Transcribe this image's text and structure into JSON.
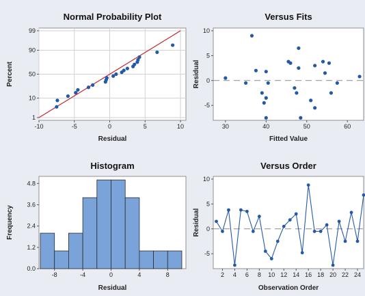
{
  "chart_data": [
    {
      "type": "scatter",
      "title": "Normal Probability Plot",
      "xlabel": "Residual",
      "ylabel": "Percent",
      "xlim": [
        -10,
        10
      ],
      "xticks": [
        -10,
        -5,
        0,
        5,
        10
      ],
      "yticks": [
        1,
        10,
        50,
        90,
        99
      ],
      "fit_line": {
        "from": [
          -10,
          1
        ],
        "to": [
          10,
          99
        ]
      },
      "points": [
        {
          "x": -7.5,
          "y": 4
        },
        {
          "x": -7.4,
          "y": 8
        },
        {
          "x": -5.9,
          "y": 12
        },
        {
          "x": -4.8,
          "y": 16
        },
        {
          "x": -4.5,
          "y": 20
        },
        {
          "x": -3.0,
          "y": 24
        },
        {
          "x": -2.4,
          "y": 28
        },
        {
          "x": -0.6,
          "y": 34
        },
        {
          "x": -0.5,
          "y": 38
        },
        {
          "x": -0.4,
          "y": 42
        },
        {
          "x": 0.5,
          "y": 46
        },
        {
          "x": 0.9,
          "y": 50
        },
        {
          "x": 1.7,
          "y": 54
        },
        {
          "x": 2.0,
          "y": 58
        },
        {
          "x": 2.5,
          "y": 62
        },
        {
          "x": 3.3,
          "y": 66
        },
        {
          "x": 3.5,
          "y": 70
        },
        {
          "x": 3.9,
          "y": 74
        },
        {
          "x": 4.0,
          "y": 78
        },
        {
          "x": 4.2,
          "y": 82
        },
        {
          "x": 6.7,
          "y": 88
        },
        {
          "x": 8.9,
          "y": 94
        }
      ],
      "grid": true,
      "point_color": "#2459a8",
      "line_color": "#c0272d"
    },
    {
      "type": "scatter",
      "title": "Versus Fits",
      "xlabel": "Fitted Value",
      "ylabel": "Residual",
      "xlim": [
        27,
        64
      ],
      "ylim": [
        -8,
        10
      ],
      "xticks": [
        30,
        40,
        50,
        60
      ],
      "yticks": [
        -5,
        0,
        5,
        10
      ],
      "reference_line": 0,
      "points": [
        {
          "x": 30,
          "y": 0.5
        },
        {
          "x": 35,
          "y": -0.5
        },
        {
          "x": 36.5,
          "y": 9.0
        },
        {
          "x": 37.5,
          "y": 2.0
        },
        {
          "x": 39,
          "y": -2.5
        },
        {
          "x": 39.5,
          "y": -4.5
        },
        {
          "x": 40,
          "y": -7.5
        },
        {
          "x": 40,
          "y": -3.5
        },
        {
          "x": 40,
          "y": 1.8
        },
        {
          "x": 40.5,
          "y": -0.5
        },
        {
          "x": 45.5,
          "y": 3.8
        },
        {
          "x": 46,
          "y": 3.5
        },
        {
          "x": 47,
          "y": -1.5
        },
        {
          "x": 47.5,
          "y": -2.5
        },
        {
          "x": 48,
          "y": 6.5
        },
        {
          "x": 48,
          "y": 2.5
        },
        {
          "x": 48.5,
          "y": -7.5
        },
        {
          "x": 51,
          "y": -4.0
        },
        {
          "x": 52,
          "y": 3.0
        },
        {
          "x": 52,
          "y": -5.5
        },
        {
          "x": 54,
          "y": 3.8
        },
        {
          "x": 54.5,
          "y": 1.5
        },
        {
          "x": 55.5,
          "y": 3.5
        },
        {
          "x": 56,
          "y": -2.5
        },
        {
          "x": 57.5,
          "y": -0.5
        },
        {
          "x": 63,
          "y": 0.8
        }
      ],
      "point_color": "#2459a8",
      "reference_color": "#8a8a8a"
    },
    {
      "type": "bar",
      "title": "Histogram",
      "xlabel": "Residual",
      "ylabel": "Frequency",
      "bin_width": 2,
      "bin_starts": [
        -10,
        -8,
        -6,
        -4,
        -2,
        0,
        2,
        4,
        6,
        8
      ],
      "values": [
        2,
        1,
        2,
        4,
        5,
        5,
        4,
        1,
        1,
        1
      ],
      "xticks": [
        -8,
        -4,
        0,
        4,
        8
      ],
      "yticks": [
        "0.0",
        "1.2",
        "2.4",
        "3.6",
        "4.8"
      ],
      "ylim": [
        0,
        5.2
      ],
      "bar_color": "#7aa3d9",
      "bar_edge": "#2b2b2b"
    },
    {
      "type": "line",
      "title": "Versus Order",
      "xlabel": "Observation Order",
      "ylabel": "Residual",
      "xlim": [
        0.5,
        25
      ],
      "ylim": [
        -8,
        10
      ],
      "xticks": [
        2,
        4,
        6,
        8,
        10,
        12,
        14,
        16,
        18,
        20,
        22,
        24
      ],
      "yticks": [
        -5,
        0,
        5,
        10
      ],
      "reference_line": 0,
      "x": [
        1,
        2,
        3,
        4,
        5,
        6,
        7,
        8,
        9,
        10,
        11,
        12,
        13,
        14,
        15,
        16,
        17,
        18,
        19,
        20,
        21,
        22,
        23,
        24,
        25
      ],
      "y": [
        1.5,
        -0.5,
        3.8,
        -7.3,
        3.8,
        3.5,
        -0.5,
        2.5,
        -4.5,
        -6.0,
        -2.5,
        0.5,
        1.8,
        3.0,
        -4.8,
        8.8,
        -0.5,
        -0.5,
        0.8,
        -7.3,
        1.5,
        -2.5,
        3.3,
        -2.5,
        6.8
      ],
      "line_color": "#2459a8",
      "reference_color": "#8a8a8a"
    }
  ]
}
